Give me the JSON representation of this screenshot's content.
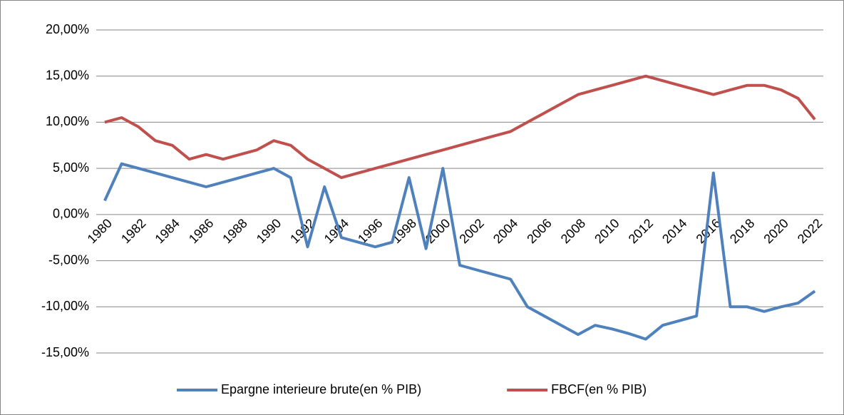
{
  "chart_data": {
    "type": "line",
    "categories": [
      "1980",
      null,
      "1982",
      null,
      "1984",
      null,
      "1986",
      null,
      "1988",
      null,
      "1990",
      null,
      "1992",
      null,
      "1994",
      null,
      "1996",
      null,
      "1998",
      null,
      "2000",
      null,
      "2002",
      null,
      "2004",
      null,
      "2006",
      null,
      "2008",
      null,
      "2010",
      null,
      "2012",
      null,
      "2014",
      null,
      "2016",
      null,
      "2018",
      null,
      "2020",
      null,
      "2022"
    ],
    "series": [
      {
        "name": "Epargne interieure brute(en % PIB)",
        "color": "#4f81bd",
        "values": [
          1.5,
          5.5,
          5.0,
          4.5,
          4.0,
          3.5,
          3.0,
          3.5,
          4.0,
          4.5,
          5.0,
          4.0,
          -3.5,
          3.0,
          -2.5,
          -3.0,
          -3.5,
          -3.0,
          4.0,
          -3.7,
          5.0,
          -5.5,
          -6.0,
          -6.5,
          -7.0,
          -10.0,
          -11.0,
          -12.0,
          -13.0,
          -12.0,
          -12.4,
          -12.9,
          -13.5,
          -12.0,
          -11.5,
          -11.0,
          4.5,
          -10.0,
          -10.0,
          -10.5,
          -10.0,
          -9.6,
          -8.3
        ]
      },
      {
        "name": "FBCF(en % PIB)",
        "color": "#c0504d",
        "values": [
          10.0,
          10.5,
          9.5,
          8.0,
          7.5,
          6.0,
          6.5,
          6.0,
          6.5,
          7.0,
          8.0,
          7.5,
          6.0,
          5.0,
          4.0,
          4.5,
          5.0,
          5.5,
          6.0,
          6.5,
          7.0,
          7.5,
          8.0,
          8.5,
          9.0,
          10.0,
          11.0,
          12.0,
          13.0,
          13.5,
          14.0,
          14.5,
          15.0,
          14.5,
          14.0,
          13.5,
          13.0,
          13.5,
          14.0,
          14.0,
          13.5,
          12.6,
          10.3
        ]
      }
    ],
    "ylim": [
      -15,
      20
    ],
    "yticks": [
      {
        "value": -15,
        "label": "-15,00%"
      },
      {
        "value": -10,
        "label": "-10,00%"
      },
      {
        "value": -5,
        "label": "-5,00%"
      },
      {
        "value": 0,
        "label": "0,00%"
      },
      {
        "value": 5,
        "label": "5,00%"
      },
      {
        "value": 10,
        "label": "10,00%"
      },
      {
        "value": 15,
        "label": "15,00%"
      },
      {
        "value": 20,
        "label": "20,00%"
      }
    ],
    "grid": true,
    "legend": "bottom"
  }
}
